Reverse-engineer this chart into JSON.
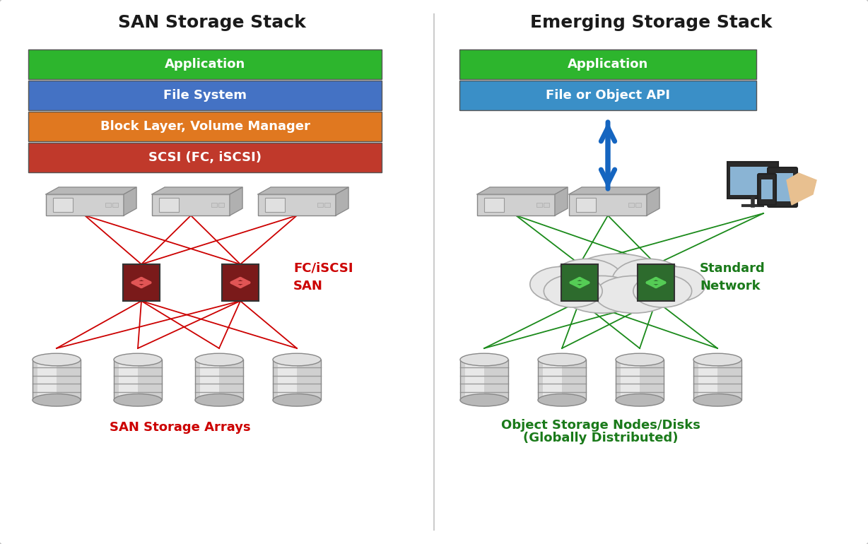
{
  "title_left": "SAN Storage Stack",
  "title_right": "Emerging Storage Stack",
  "left_layers": [
    {
      "label": "Application",
      "color": "#2db52d",
      "text_color": "#ffffff"
    },
    {
      "label": "File System",
      "color": "#4472c4",
      "text_color": "#ffffff"
    },
    {
      "label": "Block Layer, Volume Manager",
      "color": "#e07820",
      "text_color": "#ffffff"
    },
    {
      "label": "SCSI (FC, iSCSI)",
      "color": "#c0392b",
      "text_color": "#ffffff"
    }
  ],
  "right_layers": [
    {
      "label": "Application",
      "color": "#2db52d",
      "text_color": "#ffffff"
    },
    {
      "label": "File or Object API",
      "color": "#3a8fc7",
      "text_color": "#ffffff"
    }
  ],
  "left_label": "FC/iSCSI\nSAN",
  "left_label_color": "#cc0000",
  "right_label": "Standard\nNetwork",
  "right_label_color": "#1a7a1a",
  "bottom_left_label": "SAN Storage Arrays",
  "bottom_left_label_color": "#cc0000",
  "bottom_right_label_1": "Object Storage Nodes/Disks",
  "bottom_right_label_2": "(Globally Distributed)",
  "bottom_right_label_color": "#1a7a1a",
  "san_switch_color": "#7a1a1a",
  "san_switch_arrow_color": "#e05555",
  "network_switch_color": "#2d6b2d",
  "network_switch_arrow_color": "#55cc55",
  "red_line_color": "#cc0000",
  "green_line_color": "#1a8a1a",
  "blue_arrow_color": "#1565c0",
  "border_color": "#bbbbbb",
  "divider_color": "#cccccc"
}
